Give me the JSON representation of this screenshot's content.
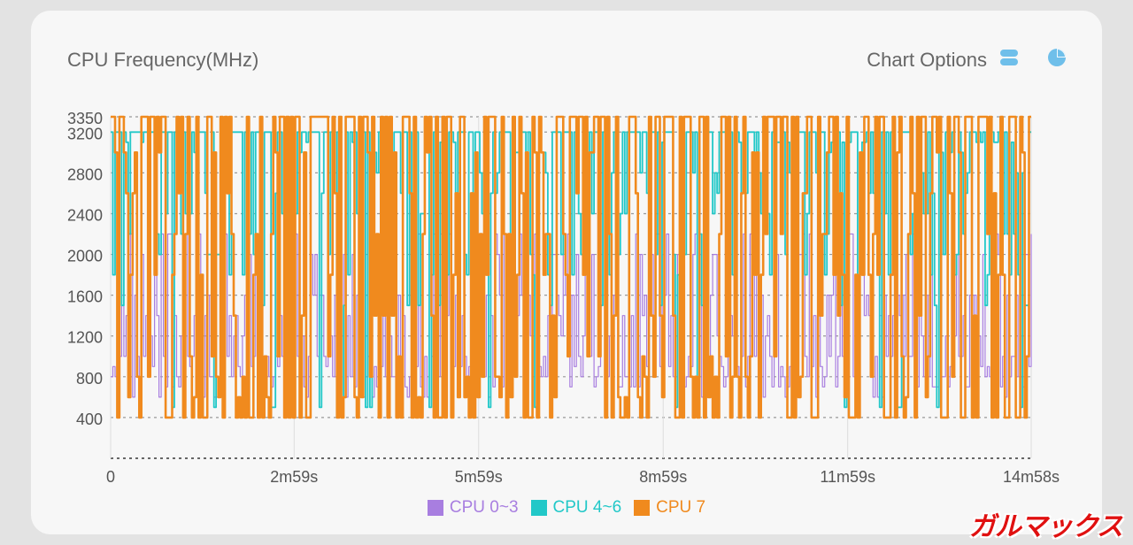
{
  "header": {
    "title": "CPU Frequency(MHz)",
    "options_label": "Chart Options",
    "options_icon": "toggle-list-icon",
    "pie_icon": "pie-chart-icon",
    "icon_color": "#6fbfea"
  },
  "watermark": "ガルマックス",
  "chart_data": {
    "type": "line",
    "title": "CPU Frequency(MHz)",
    "xlabel": "",
    "ylabel": "MHz",
    "ylim": [
      0,
      3350
    ],
    "xlim_seconds": [
      0,
      898
    ],
    "y_ticks": [
      400,
      800,
      1200,
      1600,
      2000,
      2400,
      2800,
      3200,
      3350
    ],
    "x_ticks": [
      {
        "value": 0,
        "label": "0"
      },
      {
        "value": 179,
        "label": "2m59s"
      },
      {
        "value": 359,
        "label": "5m59s"
      },
      {
        "value": 539,
        "label": "8m59s"
      },
      {
        "value": 719,
        "label": "11m59s"
      },
      {
        "value": 898,
        "label": "14m58s"
      }
    ],
    "series": [
      {
        "name": "CPU 0~3",
        "color": "#a87ee0",
        "min": 500,
        "max": 2200,
        "levels": [
          600,
          700,
          800,
          900,
          1000,
          1200,
          1400,
          1600,
          2000,
          2200
        ],
        "sample_count": 420
      },
      {
        "name": "CPU 4~6",
        "color": "#22c8c8",
        "min": 500,
        "max": 3200,
        "levels": [
          1500,
          1800,
          2000,
          2200,
          2400,
          2600,
          2800,
          3000,
          3100,
          3200
        ],
        "sample_count": 420
      },
      {
        "name": "CPU 7",
        "color": "#f08a1e",
        "min": 400,
        "max": 3350,
        "levels": [
          400,
          600,
          800,
          1000,
          1400,
          1800,
          2200,
          2600,
          3000,
          3350
        ],
        "sample_count": 420
      }
    ],
    "legend_position": "bottom-center"
  }
}
